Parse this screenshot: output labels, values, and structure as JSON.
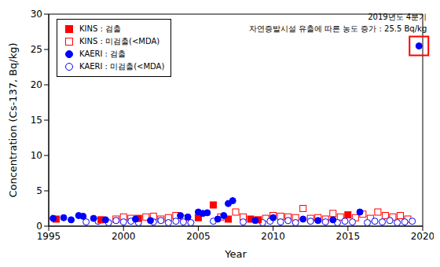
{
  "chart_data": {
    "type": "scatter",
    "x_label": "Year",
    "y_label": "Concentration (Cs-137, Bq/kg)",
    "xlim": [
      1995,
      2020
    ],
    "xticks": [
      1995,
      2000,
      2005,
      2010,
      2015,
      2020
    ],
    "ylim": [
      0,
      30
    ],
    "yticks": [
      0,
      5,
      10,
      15,
      20,
      25,
      30
    ],
    "grid": false,
    "legend": "upper left",
    "annotation": [
      "2019년도 4분기",
      "자연증발시설 유출에 따른 농도 증가 : 25.5 Bq/kg"
    ],
    "series": [
      {
        "name": "KINS : 검출",
        "color": "#ff0000",
        "marker": "square",
        "x": [
          1995.5,
          1998.5,
          2001,
          2005,
          2006,
          2007,
          2008.5,
          2009,
          2015
        ],
        "values": [
          1.0,
          0.9,
          1.1,
          1.2,
          3.0,
          1.0,
          1.0,
          0.9,
          1.6
        ]
      },
      {
        "name": "KINS : 미검출(<MDA)",
        "color": "#ff0000",
        "marker": "open_square",
        "x": [
          1999.5,
          2000,
          2000.5,
          2001.5,
          2002,
          2002.5,
          2003,
          2003.5,
          2004,
          2006.5,
          2007.5,
          2008,
          2009.5,
          2010,
          2010.5,
          2011,
          2011.5,
          2012,
          2012.5,
          2013,
          2013.5,
          2014,
          2014.5,
          2015.5,
          2016,
          2016.5,
          2017,
          2017.5,
          2018,
          2018.5,
          2019
        ],
        "values": [
          1.0,
          1.3,
          1.1,
          1.3,
          1.4,
          1.0,
          1.2,
          1.5,
          1.1,
          1.3,
          2.0,
          1.3,
          1.1,
          1.5,
          1.4,
          1.3,
          1.2,
          2.5,
          1.1,
          1.2,
          1.0,
          1.8,
          1.3,
          1.2,
          1.7,
          1.1,
          2.0,
          1.5,
          1.3,
          1.5,
          1.0
        ]
      },
      {
        "name": "KAERI : 검출",
        "color": "#0000ff",
        "marker": "circle",
        "x": [
          1995.3,
          1996,
          1996.5,
          1997,
          1997.3,
          1998,
          1998.8,
          2000.8,
          2001.8,
          2003.8,
          2004.3,
          2005,
          2005.3,
          2005.6,
          2006.3,
          2006.7,
          2007,
          2007.3,
          2008.8,
          2010,
          2012,
          2013,
          2014,
          2015.8,
          2019.75
        ],
        "values": [
          1.1,
          1.2,
          0.9,
          1.5,
          1.4,
          1.1,
          0.9,
          1.0,
          0.8,
          1.5,
          1.3,
          2.0,
          1.8,
          1.9,
          1.0,
          1.5,
          3.2,
          3.6,
          0.8,
          1.2,
          1.0,
          0.8,
          0.9,
          2.0,
          25.5
        ]
      },
      {
        "name": "KAERI : 미검출(<MDA)",
        "color": "#0000ff",
        "marker": "open_circle",
        "x": [
          1997.5,
          1998.3,
          1999,
          1999.5,
          2000,
          2000.5,
          2001,
          2002,
          2002.5,
          2003,
          2003.5,
          2004,
          2004.5,
          2006,
          2008,
          2009.3,
          2009.8,
          2010.5,
          2011,
          2011.5,
          2012.5,
          2013.5,
          2014.3,
          2014.8,
          2015.3,
          2016.3,
          2016.8,
          2017.3,
          2017.8,
          2018.3,
          2018.8,
          2019.3
        ],
        "values": [
          0.6,
          0.7,
          0.5,
          0.8,
          0.6,
          0.7,
          0.5,
          0.6,
          0.8,
          0.5,
          0.7,
          0.6,
          0.5,
          0.7,
          0.6,
          0.5,
          0.7,
          0.6,
          0.8,
          0.5,
          0.7,
          0.6,
          0.5,
          0.7,
          0.6,
          0.5,
          0.7,
          0.6,
          0.8,
          0.5,
          0.6,
          0.7
        ]
      }
    ]
  }
}
